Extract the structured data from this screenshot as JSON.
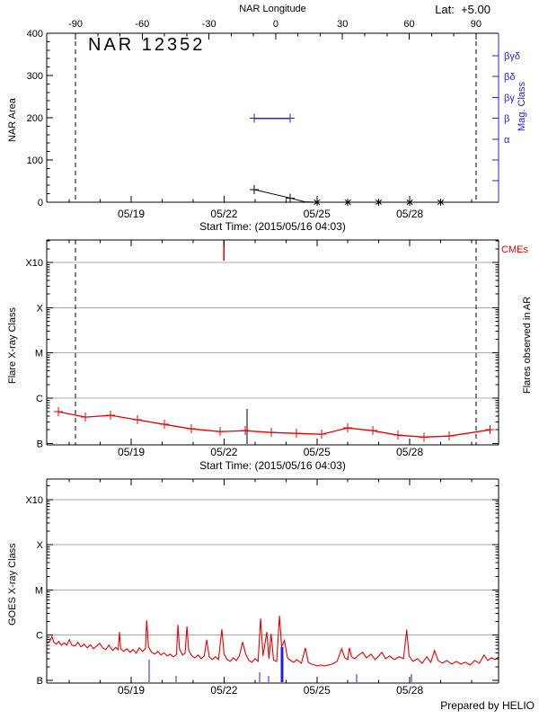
{
  "header": {
    "top_axis_label": "NAR Longitude",
    "lat_label": "Lat:  +5.00",
    "longitude_ticks": [
      -90,
      -60,
      -30,
      0,
      30,
      60,
      90
    ]
  },
  "footer": {
    "credit": "Prepared by HELIO"
  },
  "colors": {
    "red": "#e60000",
    "blue": "#2222dd",
    "grid": "#aaaaaa",
    "black": "#000000"
  },
  "time_axis": {
    "start_label": "Start Time: (2015/05/16 04:03)",
    "tick_labels": [
      "05/19",
      "05/22",
      "05/25",
      "05/28"
    ],
    "tick_days": [
      19,
      22,
      25,
      28
    ],
    "minor_days": [
      17,
      18,
      19,
      20,
      21,
      22,
      23,
      24,
      25,
      26,
      27,
      28,
      29,
      30
    ],
    "range_days": [
      16.27,
      30.87
    ],
    "limb_crossing_days": [
      17.2,
      30.14
    ]
  },
  "chart_data": [
    {
      "id": "nar-area",
      "type": "line",
      "title": "NAR 12352",
      "ylabel": "NAR Area",
      "ylim": [
        0,
        400
      ],
      "yticks": [
        0,
        100,
        200,
        300,
        400
      ],
      "right_axis": {
        "label": "Mag. Class",
        "tick_labels": [
          "βγδ",
          "βδ",
          "βγ",
          "β",
          "α"
        ]
      },
      "area_line": [
        [
          22.97,
          30
        ],
        [
          24.13,
          10
        ],
        [
          24.6,
          1
        ],
        [
          25,
          0
        ],
        [
          26,
          0
        ],
        [
          27,
          0
        ],
        [
          28,
          0
        ],
        [
          29,
          0
        ]
      ],
      "area_points_plus": [
        [
          22.97,
          30
        ],
        [
          24.13,
          10
        ]
      ],
      "area_points_asterisk": [
        [
          25,
          0
        ],
        [
          26,
          0
        ],
        [
          27,
          0
        ],
        [
          28,
          0
        ],
        [
          29,
          0
        ]
      ],
      "mag_class_segment": {
        "start_day": 22.97,
        "end_day": 24.13,
        "class": "β",
        "tick_index": 3
      }
    },
    {
      "id": "flare-xray",
      "type": "line",
      "ylabel": "Flare X-ray Class",
      "level_scale": "decades above B: B=0, C=1, M=2, X=3, X10=4",
      "yticks": [
        "B",
        "C",
        "M",
        "X",
        "X10"
      ],
      "right_labels": {
        "cme": "CMEs",
        "flares": "Flares observed in AR"
      },
      "cme_marker_days": [
        21.99
      ],
      "flare_line_marker": {
        "day": 22.74,
        "level": 0.76
      },
      "series": [
        [
          16.65,
          0.7
        ],
        [
          17.52,
          0.58
        ],
        [
          18.33,
          0.62
        ],
        [
          19.2,
          0.52
        ],
        [
          20.07,
          0.42
        ],
        [
          20.94,
          0.32
        ],
        [
          21.87,
          0.26
        ],
        [
          22.68,
          0.28
        ],
        [
          23.52,
          0.24
        ],
        [
          24.34,
          0.22
        ],
        [
          25.15,
          0.2
        ],
        [
          25.99,
          0.34
        ],
        [
          26.8,
          0.28
        ],
        [
          27.62,
          0.18
        ],
        [
          28.46,
          0.14
        ],
        [
          29.27,
          0.16
        ],
        [
          30.6,
          0.3
        ]
      ]
    },
    {
      "id": "goes-xray",
      "type": "line",
      "ylabel": "GOES X-ray Class",
      "level_scale": "decades above B: B=0, C=1, M=2, X=3, X10=4",
      "yticks": [
        "B",
        "C",
        "M",
        "X",
        "X10"
      ],
      "event_marks": [
        {
          "day": 19.58,
          "level": 0.44,
          "w": 1
        },
        {
          "day": 20.45,
          "level": 0.08,
          "w": 1
        },
        {
          "day": 23.15,
          "level": 0.16,
          "w": 1
        },
        {
          "day": 23.44,
          "level": 0.08,
          "w": 1
        },
        {
          "day": 23.87,
          "level": 0.72,
          "w": 3
        },
        {
          "day": 26.28,
          "level": 0.12,
          "w": 1
        },
        {
          "day": 28.05,
          "level": 0.12,
          "w": 1
        }
      ],
      "series": [
        [
          16.3,
          0.82
        ],
        [
          16.38,
          0.88
        ],
        [
          16.44,
          0.97
        ],
        [
          16.5,
          0.84
        ],
        [
          16.58,
          0.8
        ],
        [
          16.66,
          0.86
        ],
        [
          16.74,
          0.78
        ],
        [
          16.84,
          0.83
        ],
        [
          16.92,
          0.78
        ],
        [
          17.0,
          0.9
        ],
        [
          17.08,
          0.78
        ],
        [
          17.18,
          0.76
        ],
        [
          17.28,
          0.84
        ],
        [
          17.38,
          0.74
        ],
        [
          17.48,
          0.8
        ],
        [
          17.58,
          0.72
        ],
        [
          17.68,
          0.79
        ],
        [
          17.78,
          0.7
        ],
        [
          17.88,
          0.76
        ],
        [
          17.98,
          0.82
        ],
        [
          18.08,
          0.72
        ],
        [
          18.18,
          0.68
        ],
        [
          18.28,
          0.78
        ],
        [
          18.4,
          0.66
        ],
        [
          18.5,
          0.73
        ],
        [
          18.58,
          0.68
        ],
        [
          18.62,
          1.07
        ],
        [
          18.66,
          0.7
        ],
        [
          18.76,
          0.64
        ],
        [
          18.86,
          0.7
        ],
        [
          18.96,
          0.62
        ],
        [
          19.06,
          0.68
        ],
        [
          19.16,
          0.6
        ],
        [
          19.26,
          0.72
        ],
        [
          19.36,
          0.64
        ],
        [
          19.46,
          0.7
        ],
        [
          19.5,
          1.33
        ],
        [
          19.56,
          0.74
        ],
        [
          19.66,
          0.62
        ],
        [
          19.76,
          0.58
        ],
        [
          19.86,
          0.64
        ],
        [
          19.96,
          0.56
        ],
        [
          20.06,
          0.61
        ],
        [
          20.16,
          0.54
        ],
        [
          20.26,
          0.58
        ],
        [
          20.36,
          0.52
        ],
        [
          20.46,
          0.57
        ],
        [
          20.51,
          1.23
        ],
        [
          20.56,
          0.7
        ],
        [
          20.66,
          0.56
        ],
        [
          20.74,
          0.6
        ],
        [
          20.8,
          1.19
        ],
        [
          20.86,
          0.66
        ],
        [
          20.96,
          0.54
        ],
        [
          21.06,
          0.5
        ],
        [
          21.16,
          0.56
        ],
        [
          21.26,
          0.48
        ],
        [
          21.36,
          0.54
        ],
        [
          21.44,
          0.9
        ],
        [
          21.52,
          0.52
        ],
        [
          21.62,
          0.46
        ],
        [
          21.72,
          0.52
        ],
        [
          21.82,
          0.46
        ],
        [
          21.93,
          1.13
        ],
        [
          22.0,
          0.58
        ],
        [
          22.1,
          0.46
        ],
        [
          22.2,
          0.42
        ],
        [
          22.3,
          0.5
        ],
        [
          22.4,
          0.44
        ],
        [
          22.5,
          0.55
        ],
        [
          22.6,
          0.85
        ],
        [
          22.7,
          0.58
        ],
        [
          22.8,
          0.44
        ],
        [
          22.9,
          0.4
        ],
        [
          23.0,
          0.48
        ],
        [
          23.1,
          0.42
        ],
        [
          23.18,
          1.37
        ],
        [
          23.26,
          0.54
        ],
        [
          23.38,
          1.07
        ],
        [
          23.45,
          0.48
        ],
        [
          23.52,
          1.03
        ],
        [
          23.6,
          0.45
        ],
        [
          23.7,
          0.42
        ],
        [
          23.79,
          1.43
        ],
        [
          23.86,
          0.74
        ],
        [
          23.95,
          0.88
        ],
        [
          24.05,
          0.5
        ],
        [
          24.15,
          0.44
        ],
        [
          24.25,
          0.4
        ],
        [
          24.35,
          0.46
        ],
        [
          24.5,
          0.38
        ],
        [
          24.63,
          0.72
        ],
        [
          24.72,
          0.4
        ],
        [
          24.82,
          0.36
        ],
        [
          24.92,
          0.34
        ],
        [
          25.02,
          0.32
        ],
        [
          25.12,
          0.34
        ],
        [
          25.24,
          0.32
        ],
        [
          25.36,
          0.34
        ],
        [
          25.5,
          0.36
        ],
        [
          25.65,
          0.42
        ],
        [
          25.8,
          0.7
        ],
        [
          25.9,
          0.5
        ],
        [
          26.0,
          0.46
        ],
        [
          26.05,
          0.72
        ],
        [
          26.12,
          0.52
        ],
        [
          26.22,
          0.48
        ],
        [
          26.35,
          0.56
        ],
        [
          26.48,
          0.62
        ],
        [
          26.6,
          0.5
        ],
        [
          26.75,
          0.58
        ],
        [
          26.88,
          0.46
        ],
        [
          27.0,
          0.54
        ],
        [
          27.1,
          0.62
        ],
        [
          27.22,
          0.48
        ],
        [
          27.35,
          0.54
        ],
        [
          27.5,
          0.46
        ],
        [
          27.65,
          0.52
        ],
        [
          27.8,
          0.48
        ],
        [
          27.9,
          1.12
        ],
        [
          27.98,
          0.54
        ],
        [
          28.1,
          0.42
        ],
        [
          28.25,
          0.48
        ],
        [
          28.4,
          0.38
        ],
        [
          28.55,
          0.52
        ],
        [
          28.68,
          0.4
        ],
        [
          28.8,
          0.66
        ],
        [
          28.92,
          0.44
        ],
        [
          29.05,
          0.38
        ],
        [
          29.2,
          0.44
        ],
        [
          29.35,
          0.36
        ],
        [
          29.5,
          0.42
        ],
        [
          29.65,
          0.36
        ],
        [
          29.8,
          0.4
        ],
        [
          29.95,
          0.34
        ],
        [
          30.1,
          0.44
        ],
        [
          30.25,
          0.38
        ],
        [
          30.4,
          0.56
        ],
        [
          30.52,
          0.44
        ],
        [
          30.64,
          0.5
        ],
        [
          30.76,
          0.46
        ],
        [
          30.88,
          0.52
        ]
      ]
    }
  ]
}
